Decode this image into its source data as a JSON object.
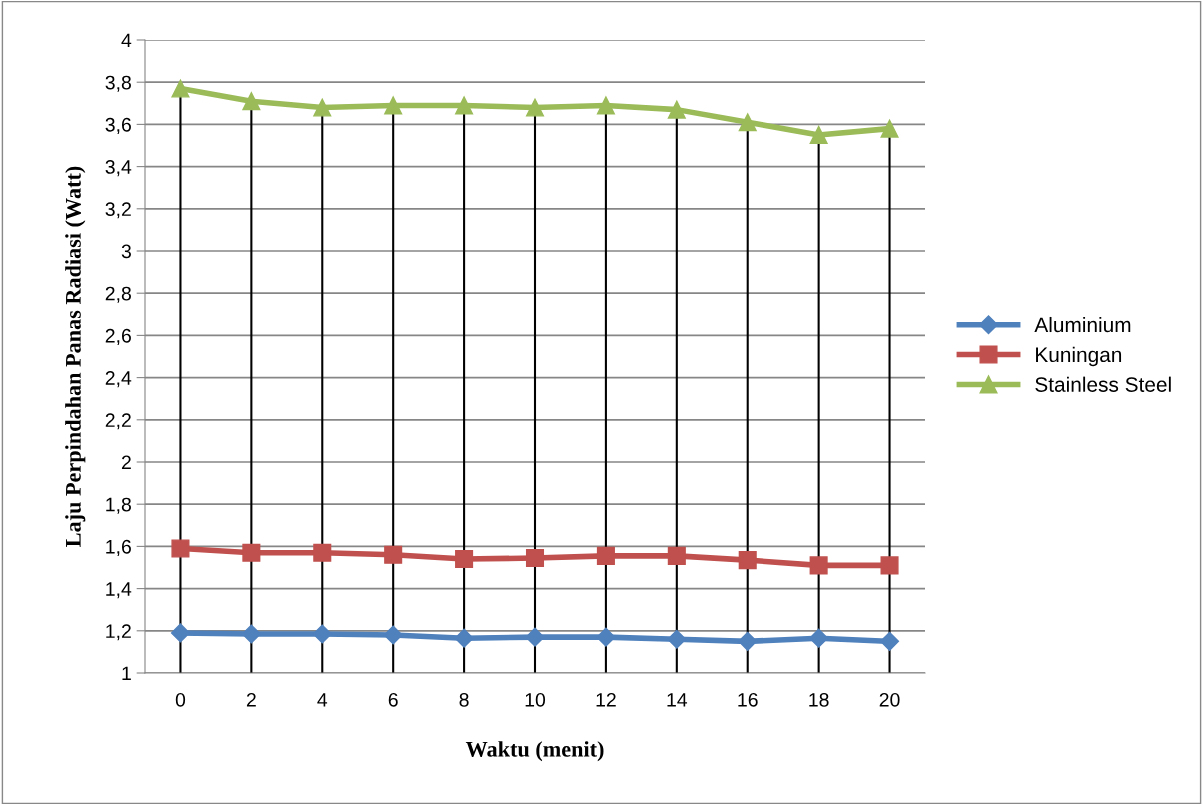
{
  "chart_data": {
    "type": "line",
    "xlabel": "Waktu (menit)",
    "ylabel": "Laju Perpindahan Panas Radiasi (Watt)",
    "categories": [
      "0",
      "2",
      "4",
      "6",
      "8",
      "10",
      "12",
      "14",
      "16",
      "18",
      "20"
    ],
    "series": [
      {
        "name": "Aluminium",
        "color": "#4f81bd",
        "marker": "diamond",
        "values": [
          1.19,
          1.185,
          1.185,
          1.18,
          1.165,
          1.17,
          1.17,
          1.16,
          1.15,
          1.165,
          1.15
        ]
      },
      {
        "name": "Kuningan",
        "color": "#c0504d",
        "marker": "square",
        "values": [
          1.59,
          1.57,
          1.57,
          1.56,
          1.54,
          1.545,
          1.555,
          1.555,
          1.535,
          1.51,
          1.51
        ]
      },
      {
        "name": "Stainless Steel",
        "color": "#9bbb59",
        "marker": "triangle",
        "values": [
          3.77,
          3.71,
          3.68,
          3.69,
          3.69,
          3.68,
          3.69,
          3.67,
          3.61,
          3.55,
          3.58
        ]
      }
    ],
    "ylim": [
      1,
      4
    ],
    "yticks": [
      1,
      {
        "value": 1.2,
        "label": "1,2"
      },
      {
        "value": 1.4,
        "label": "1,4"
      },
      {
        "value": 1.6,
        "label": "1,6"
      },
      {
        "value": 1.8,
        "label": "1,8"
      },
      2,
      {
        "value": 2.2,
        "label": "2,2"
      },
      {
        "value": 2.4,
        "label": "2,4"
      },
      {
        "value": 2.6,
        "label": "2,6"
      },
      {
        "value": 2.8,
        "label": "2,8"
      },
      3,
      {
        "value": 3.2,
        "label": "3,2"
      },
      {
        "value": 3.4,
        "label": "3,4"
      },
      {
        "value": 3.6,
        "label": "3,6"
      },
      {
        "value": 3.8,
        "label": "3,8"
      },
      4
    ],
    "grid": true,
    "legend": "right",
    "line_style": "solid"
  }
}
